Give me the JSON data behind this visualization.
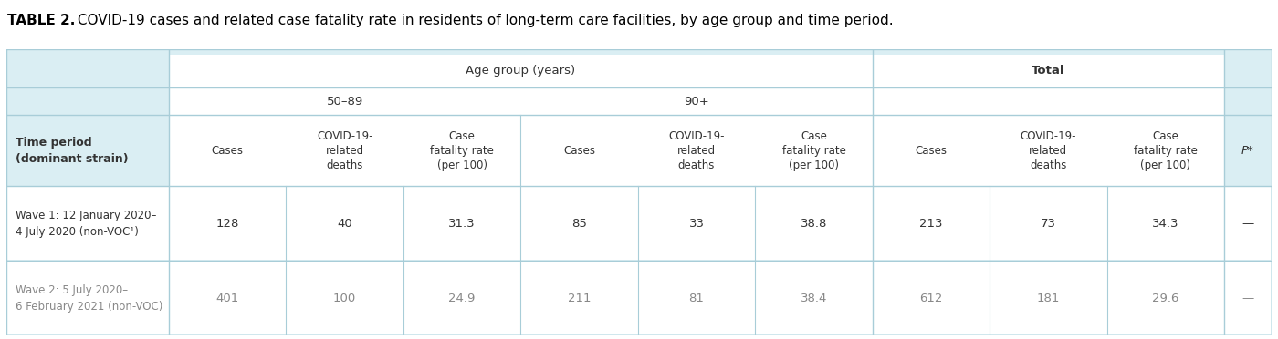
{
  "title_bold": "TABLE 2.",
  "title_rest": " COVID-19 cases and related case fatality rate in residents of long-term care facilities, by age group and time period.",
  "bg_color": "#daeef3",
  "cell_bg_white": "#ffffff",
  "line_color": "#a8cdd8",
  "col_header_age_group": "Age group (years)",
  "col_header_50_89": "50–89",
  "col_header_90plus": "90+",
  "col_header_total": "Total",
  "col_header_p": "P*",
  "sub_headers": [
    "Cases",
    "COVID-19-\nrelated\ndeaths",
    "Case\nfatality rate\n(per 100)",
    "Cases",
    "COVID-19-\nrelated\ndeaths",
    "Case\nfatality rate\n(per 100)",
    "Cases",
    "COVID-19-\nrelated\ndeaths",
    "Case\nfatality rate\n(per 100)"
  ],
  "row_label_col": "Time period\n(dominant strain)",
  "rows": [
    {
      "label": "Wave 1: 12 January 2020–\n4 July 2020 (non-VOC¹)",
      "values": [
        "128",
        "40",
        "31.3",
        "85",
        "33",
        "38.8",
        "213",
        "73",
        "34.3",
        "—"
      ]
    },
    {
      "label": "Wave 2: 5 July 2020–\n6 February 2021 (non-VOC)",
      "values": [
        "401",
        "100",
        "24.9",
        "211",
        "81",
        "38.4",
        "612",
        "181",
        "29.6",
        "—"
      ]
    }
  ],
  "title_fontsize": 11,
  "header_fontsize": 9.5,
  "cell_fontsize": 9.5,
  "label_fontsize": 9.0,
  "text_color_dark": "#333333",
  "text_color_wave1": "#333333",
  "text_color_wave2": "#888888"
}
